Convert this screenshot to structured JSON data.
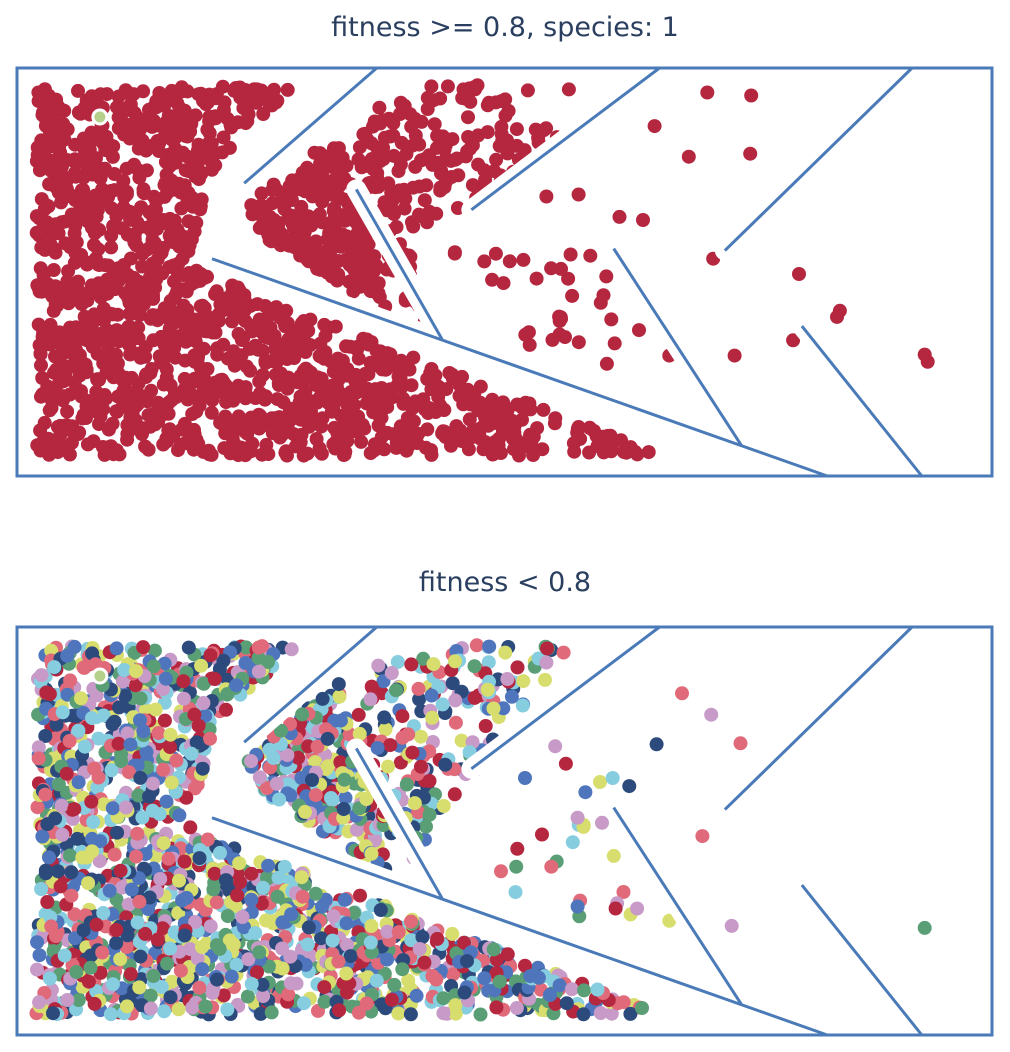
{
  "colors": {
    "frame": "#4a7ab8",
    "wall": "#4a7ab8",
    "title": "#2a3f5f",
    "goal": "#b5d08a",
    "species_palette": [
      "#b5263f",
      "#87cde0",
      "#d8de6e",
      "#2c4a7c",
      "#4f76bd",
      "#5a9e76",
      "#c79ac7",
      "#e06a7a"
    ]
  },
  "chart_data": [
    {
      "type": "scatter",
      "title": "fitness >= 0.8, species: 1",
      "xlim": [
        0,
        100
      ],
      "ylim": [
        0,
        40
      ],
      "grid": false,
      "legend": "none",
      "maze_walls": [
        [
          [
            36.9,
            40
          ],
          [
            23.3,
            28.7
          ]
        ],
        [
          [
            65.9,
            40
          ],
          [
            46.6,
            26.1
          ]
        ],
        [
          [
            91.8,
            40
          ],
          [
            72.6,
            22.1
          ]
        ],
        [
          [
            20.0,
            21.3
          ],
          [
            83.1,
            0
          ]
        ],
        [
          [
            34.8,
            28.1
          ],
          [
            43.6,
            13.4
          ]
        ],
        [
          [
            61.2,
            22.3
          ],
          [
            74.3,
            3.0
          ]
        ],
        [
          [
            80.5,
            14.7
          ],
          [
            92.8,
            0
          ]
        ]
      ],
      "maze_openings": [
        [
          39.5,
          5.0,
          32.0,
          38.5
        ]
      ],
      "goal": [
        8.5,
        35.2
      ],
      "series": [
        {
          "color_index": 0,
          "clusters": [
            {
              "type": "triangle",
              "poly": [
                [
                  2,
                  38.2
                ],
                [
                  29,
                  38.2
                ],
                [
                  20.5,
                  31
                ],
                [
                  17.5,
                  20.5
                ],
                [
                  66,
                  2
                ],
                [
                  2,
                  2
                ]
              ],
              "count": 1400
            },
            {
              "type": "triangle",
              "poly": [
                [
                  23,
                  26.5
                ],
                [
                  33,
                  33.5
                ],
                [
                  38,
                  16
                ],
                [
                  26,
                  23
                ]
              ],
              "count": 260
            },
            {
              "type": "triangle",
              "poly": [
                [
                  36,
                  36
                ],
                [
                  48,
                  38.5
                ],
                [
                  56,
                  33
                ],
                [
                  46,
                  26.5
                ],
                [
                  40,
                  24
                ],
                [
                  43,
                  13.5
                ],
                [
                  33,
                  24
                ]
              ],
              "count": 210
            },
            {
              "type": "triangle",
              "poly": [
                [
                  44,
                  22
                ],
                [
                  60,
                  22
                ],
                [
                  64,
                  10
                ],
                [
                  52,
                  13
                ],
                [
                  47,
                  18
                ]
              ],
              "count": 26
            }
          ],
          "points": [
            [
              42.5,
              38.2
            ],
            [
              44.2,
              38.2
            ],
            [
              45.8,
              37.9
            ],
            [
              52.4,
              37.8
            ],
            [
              56.6,
              37.9
            ],
            [
              70.8,
              37.6
            ],
            [
              75.3,
              37.3
            ],
            [
              65.4,
              34.3
            ],
            [
              68.9,
              31.3
            ],
            [
              75.2,
              31.6
            ],
            [
              54.3,
              27.4
            ],
            [
              57.6,
              27.6
            ],
            [
              61.8,
              25.4
            ],
            [
              64.2,
              25.1
            ],
            [
              58.8,
              21.6
            ],
            [
              55.8,
              20.3
            ],
            [
              71.4,
              21.3
            ],
            [
              80.2,
              19.8
            ],
            [
              84.4,
              16.2
            ],
            [
              84.1,
              15.6
            ],
            [
              63.8,
              14.3
            ],
            [
              61.3,
              13.0
            ],
            [
              66.9,
              11.8
            ],
            [
              73.6,
              11.8
            ],
            [
              79.6,
              13.3
            ],
            [
              93.1,
              11.9
            ],
            [
              93.4,
              11.2
            ],
            [
              52.5,
              14.1
            ],
            [
              55.8,
              15.4
            ],
            [
              60.5,
              11.0
            ]
          ]
        }
      ]
    },
    {
      "type": "scatter",
      "title": "fitness < 0.8",
      "xlim": [
        0,
        100
      ],
      "ylim": [
        0,
        40
      ],
      "grid": false,
      "legend": "none",
      "maze_walls": [
        [
          [
            36.9,
            40
          ],
          [
            23.3,
            28.7
          ]
        ],
        [
          [
            65.9,
            40
          ],
          [
            46.6,
            26.1
          ]
        ],
        [
          [
            91.8,
            40
          ],
          [
            72.6,
            22.1
          ]
        ],
        [
          [
            20.0,
            21.3
          ],
          [
            83.1,
            0
          ]
        ],
        [
          [
            34.8,
            28.1
          ],
          [
            43.6,
            13.4
          ]
        ],
        [
          [
            61.2,
            22.3
          ],
          [
            74.3,
            3.0
          ]
        ],
        [
          [
            80.5,
            14.7
          ],
          [
            92.8,
            0
          ]
        ]
      ],
      "goal": [
        8.5,
        35.2
      ],
      "series": [
        {
          "color_index": -1,
          "clusters": [
            {
              "type": "triangle",
              "poly": [
                [
                  2,
                  38.2
                ],
                [
                  29,
                  38.2
                ],
                [
                  20.5,
                  31
                ],
                [
                  17.5,
                  20.5
                ],
                [
                  66,
                  2
                ],
                [
                  2,
                  2
                ]
              ],
              "count": 1700
            },
            {
              "type": "triangle",
              "poly": [
                [
                  23,
                  26.5
                ],
                [
                  33,
                  35
                ],
                [
                  38,
                  16
                ],
                [
                  26,
                  23
                ]
              ],
              "count": 240
            },
            {
              "type": "triangle",
              "poly": [
                [
                  36,
                  36
                ],
                [
                  48,
                  38.5
                ],
                [
                  57,
                  38
                ],
                [
                  50,
                  30
                ],
                [
                  46,
                  24
                ],
                [
                  42,
                  21
                ],
                [
                  43,
                  15
                ],
                [
                  33,
                  24
                ]
              ],
              "count": 220
            },
            {
              "type": "triangle",
              "poly": [
                [
                  44,
                  22
                ],
                [
                  60,
                  22
                ],
                [
                  64,
                  10
                ],
                [
                  52,
                  13
                ],
                [
                  47,
                  18
                ]
              ],
              "count": 14
            }
          ],
          "points": [
            [
              68.2,
              33.5
            ],
            [
              71.2,
              31.4
            ],
            [
              74.2,
              28.6
            ],
            [
              65.6,
              28.5
            ],
            [
              55.2,
              28.3
            ],
            [
              56.3,
              26.6
            ],
            [
              58.3,
              23.8
            ],
            [
              59.8,
              24.8
            ],
            [
              61.1,
              25.2
            ],
            [
              62.8,
              24.4
            ],
            [
              52.1,
              25.2
            ],
            [
              57.5,
              21.3
            ],
            [
              60.0,
              20.8
            ],
            [
              57.0,
              18.9
            ],
            [
              54.8,
              16.5
            ],
            [
              51.2,
              16.5
            ],
            [
              70.3,
              19.5
            ],
            [
              57.5,
              12.6
            ],
            [
              61.4,
              12.4
            ],
            [
              63.6,
              12.4
            ],
            [
              66.9,
              11.2
            ],
            [
              73.3,
              10.7
            ],
            [
              93.1,
              10.5
            ]
          ]
        }
      ]
    }
  ]
}
